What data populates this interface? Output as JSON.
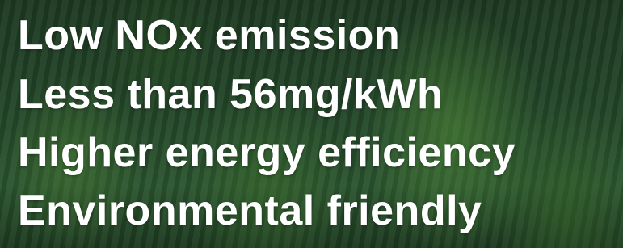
{
  "lines": [
    "Low NOx emission",
    "Less than 56mg/kWh",
    "Higher energy efficiency",
    "Environmental friendly"
  ]
}
